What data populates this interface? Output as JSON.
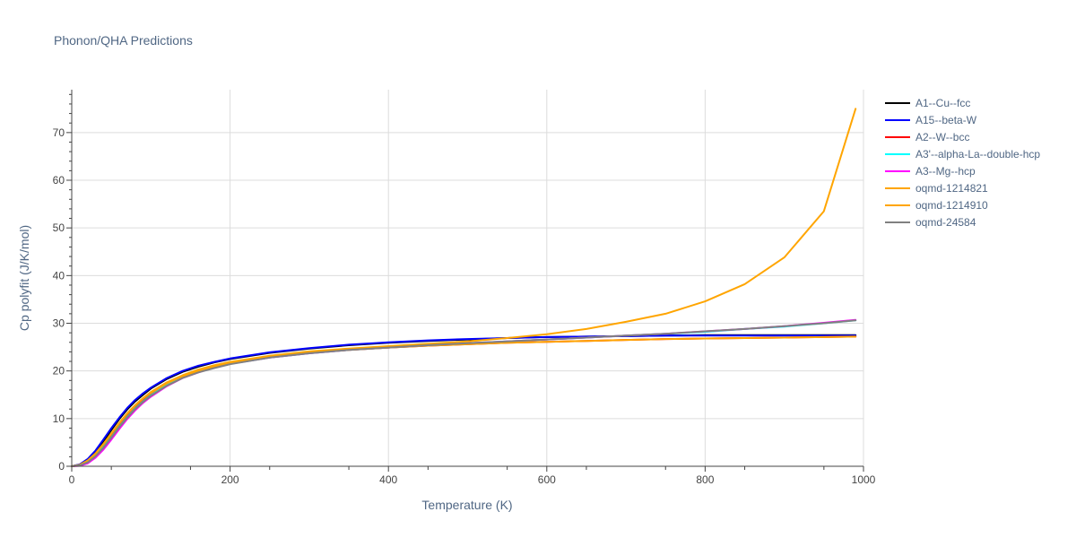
{
  "chart_data": {
    "type": "line",
    "title": "Phonon/QHA Predictions",
    "xlabel": "Temperature (K)",
    "ylabel": "Cp polyfit (J/K/mol)",
    "xlim": [
      0,
      1000
    ],
    "ylim": [
      0,
      79
    ],
    "x_ticks": [
      0,
      200,
      400,
      600,
      800,
      1000
    ],
    "y_ticks": [
      0,
      10,
      20,
      30,
      40,
      50,
      60,
      70
    ],
    "grid": true,
    "legend_position": "right",
    "series": [
      {
        "name": "A1--Cu--fcc",
        "color": "#000000",
        "x": [
          0,
          10,
          20,
          30,
          40,
          50,
          60,
          70,
          80,
          90,
          100,
          120,
          140,
          160,
          180,
          200,
          250,
          300,
          350,
          400,
          450,
          500,
          550,
          600,
          650,
          700,
          750,
          800,
          850,
          900,
          950,
          990
        ],
        "y": [
          0,
          0.3,
          1.3,
          3.0,
          5.2,
          7.6,
          9.9,
          11.9,
          13.6,
          15.0,
          16.3,
          18.3,
          19.8,
          20.9,
          21.8,
          22.5,
          23.8,
          24.7,
          25.4,
          25.9,
          26.3,
          26.6,
          26.9,
          27.1,
          27.2,
          27.3,
          27.4,
          27.5,
          27.5,
          27.5,
          27.5,
          27.5
        ]
      },
      {
        "name": "A15--beta-W",
        "color": "#0000ff",
        "x": [
          0,
          10,
          20,
          30,
          40,
          50,
          60,
          70,
          80,
          90,
          100,
          120,
          140,
          160,
          180,
          200,
          250,
          300,
          350,
          400,
          450,
          500,
          550,
          600,
          650,
          700,
          750,
          800,
          850,
          900,
          950,
          990
        ],
        "y": [
          0,
          0.4,
          1.5,
          3.3,
          5.6,
          8.0,
          10.2,
          12.2,
          13.9,
          15.3,
          16.5,
          18.5,
          20.0,
          21.1,
          21.9,
          22.6,
          23.9,
          24.8,
          25.5,
          26.0,
          26.4,
          26.7,
          26.9,
          27.1,
          27.2,
          27.3,
          27.4,
          27.4,
          27.4,
          27.4,
          27.4,
          27.4
        ]
      },
      {
        "name": "A2--W--bcc",
        "color": "#ff0000",
        "x": [
          0,
          10,
          20,
          30,
          40,
          50,
          60,
          70,
          80,
          90,
          100,
          120,
          140,
          160,
          180,
          200,
          250,
          300,
          350,
          400,
          450,
          500,
          550,
          600,
          650,
          700,
          750,
          800,
          850,
          900,
          950,
          990
        ],
        "y": [
          0,
          0.2,
          1.0,
          2.4,
          4.4,
          6.6,
          8.8,
          10.8,
          12.5,
          14.0,
          15.3,
          17.4,
          18.9,
          20.0,
          20.9,
          21.6,
          22.9,
          23.8,
          24.5,
          24.9,
          25.3,
          25.6,
          25.9,
          26.1,
          26.3,
          26.5,
          26.7,
          26.8,
          26.9,
          27.0,
          27.1,
          27.2
        ]
      },
      {
        "name": "A3'--alpha-La--double-hcp",
        "color": "#00ffff",
        "x": [
          0,
          10,
          20,
          30,
          40,
          50,
          60,
          70,
          80,
          90,
          100,
          120,
          140,
          160,
          180,
          200,
          250,
          300,
          350,
          400,
          450,
          500,
          550,
          600,
          650,
          700,
          750,
          800,
          850,
          900,
          950,
          990
        ],
        "y": [
          0,
          0.2,
          0.9,
          2.2,
          4.0,
          6.1,
          8.3,
          10.3,
          12.1,
          13.6,
          14.9,
          17.0,
          18.6,
          19.8,
          20.7,
          21.5,
          22.8,
          23.7,
          24.4,
          24.9,
          25.4,
          25.8,
          26.2,
          26.6,
          27.0,
          27.4,
          27.8,
          28.2,
          28.8,
          29.3,
          30.0,
          30.6
        ]
      },
      {
        "name": "A3--Mg--hcp",
        "color": "#ff00ff",
        "x": [
          0,
          10,
          20,
          30,
          40,
          50,
          60,
          70,
          80,
          90,
          100,
          120,
          140,
          160,
          180,
          200,
          250,
          300,
          350,
          400,
          450,
          500,
          550,
          600,
          650,
          700,
          750,
          800,
          850,
          900,
          950,
          990
        ],
        "y": [
          0,
          0.1,
          0.6,
          1.8,
          3.5,
          5.6,
          7.8,
          9.9,
          11.7,
          13.3,
          14.6,
          16.8,
          18.5,
          19.7,
          20.7,
          21.5,
          22.8,
          23.7,
          24.4,
          24.9,
          25.4,
          25.8,
          26.2,
          26.6,
          27.0,
          27.4,
          27.8,
          28.3,
          28.8,
          29.4,
          30.1,
          30.7
        ]
      },
      {
        "name": "oqmd-1214821",
        "color": "#ffa500",
        "x": [
          0,
          10,
          20,
          30,
          40,
          50,
          60,
          70,
          80,
          90,
          100,
          120,
          140,
          160,
          180,
          200,
          250,
          300,
          350,
          400,
          450,
          500,
          550,
          600,
          650,
          700,
          750,
          800,
          850,
          900,
          950,
          990
        ],
        "y": [
          0,
          0.3,
          1.2,
          2.7,
          4.7,
          6.9,
          9.1,
          11.1,
          12.8,
          14.3,
          15.6,
          17.6,
          19.1,
          20.3,
          21.2,
          21.9,
          23.2,
          24.1,
          24.7,
          25.2,
          25.7,
          26.2,
          26.9,
          27.7,
          28.8,
          30.3,
          32.0,
          34.6,
          38.2,
          43.8,
          53.5,
          75.0
        ]
      },
      {
        "name": "oqmd-1214910",
        "color": "#ffa500",
        "x": [
          0,
          10,
          20,
          30,
          40,
          50,
          60,
          70,
          80,
          90,
          100,
          120,
          140,
          160,
          180,
          200,
          250,
          300,
          350,
          400,
          450,
          500,
          550,
          600,
          650,
          700,
          750,
          800,
          850,
          900,
          950,
          990
        ],
        "y": [
          0,
          0.2,
          1.1,
          2.6,
          4.6,
          6.8,
          9.0,
          11.0,
          12.7,
          14.2,
          15.4,
          17.4,
          18.9,
          20.0,
          20.9,
          21.6,
          22.9,
          23.8,
          24.4,
          24.9,
          25.3,
          25.6,
          25.9,
          26.1,
          26.3,
          26.5,
          26.7,
          26.8,
          26.9,
          27.0,
          27.1,
          27.2
        ]
      },
      {
        "name": "oqmd-24584",
        "color": "#808080",
        "x": [
          0,
          10,
          20,
          30,
          40,
          50,
          60,
          70,
          80,
          90,
          100,
          120,
          140,
          160,
          180,
          200,
          250,
          300,
          350,
          400,
          450,
          500,
          550,
          600,
          650,
          700,
          750,
          800,
          850,
          900,
          950,
          990
        ],
        "y": [
          0,
          0.2,
          0.8,
          2.1,
          3.9,
          6.0,
          8.2,
          10.2,
          12.0,
          13.5,
          14.8,
          16.9,
          18.5,
          19.7,
          20.6,
          21.4,
          22.8,
          23.7,
          24.4,
          24.9,
          25.4,
          25.8,
          26.2,
          26.6,
          27.0,
          27.4,
          27.8,
          28.3,
          28.8,
          29.4,
          30.0,
          30.6
        ]
      }
    ]
  }
}
